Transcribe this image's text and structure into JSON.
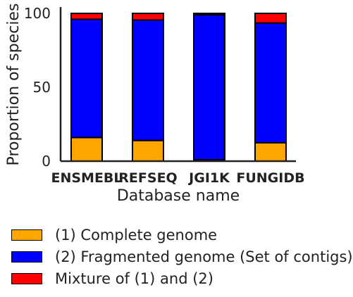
{
  "chart_data": {
    "type": "bar",
    "stacked": true,
    "xlabel": "Database name",
    "ylabel": "Proportion of species",
    "categories": [
      "ENSMEBL",
      "REFSEQ",
      "JGI1K",
      "FUNGIDB"
    ],
    "ylim": [
      0,
      100
    ],
    "yticks": [
      "0",
      "50",
      "100"
    ],
    "series": [
      {
        "name": "(1) Complete genome",
        "color": "#FFA500",
        "values": [
          16,
          14,
          1,
          12.5
        ]
      },
      {
        "name": "(2) Fragmented genome (Set of contigs)",
        "color": "#0000FF",
        "values": [
          80,
          81.5,
          98,
          81
        ]
      },
      {
        "name": "Mixture of (1) and (2)",
        "color": "#FF0000",
        "values": [
          4,
          4.5,
          1,
          6.5
        ]
      }
    ],
    "legend_position": "bottom-left",
    "grid": false
  }
}
